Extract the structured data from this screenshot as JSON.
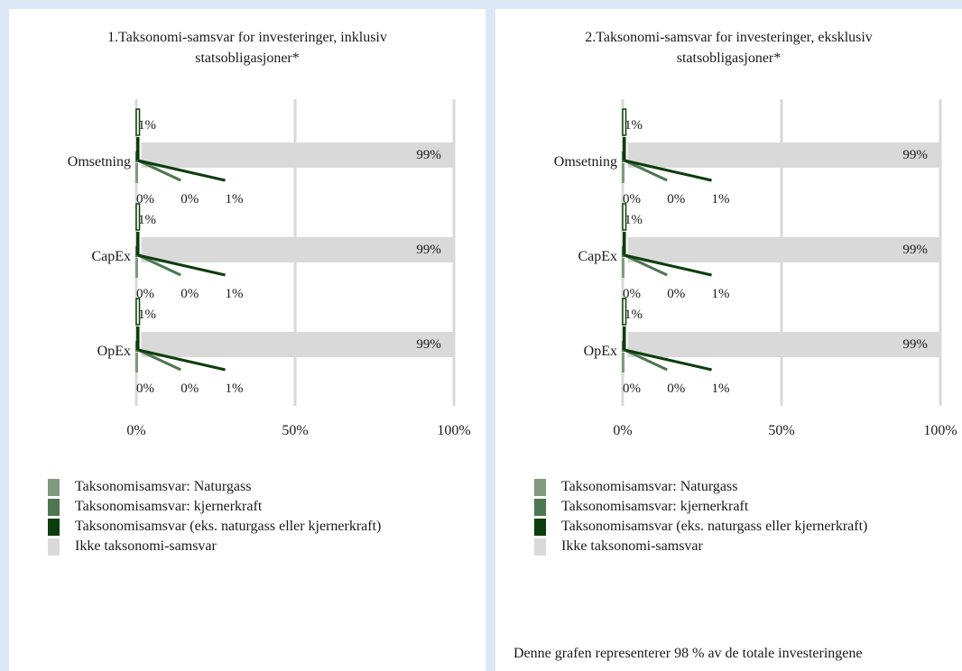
{
  "colors": {
    "naturgass": "#7f9a7f",
    "kjernerkraft": "#4f7652",
    "taksonomi": "#0c3d0c",
    "ikke": "#d9d9d9",
    "grid": "#d9d9d9"
  },
  "x_ticks": [
    "0%",
    "50%",
    "100%"
  ],
  "legend": [
    {
      "key": "naturgass",
      "label": "Taksonomisamsvar: Naturgass"
    },
    {
      "key": "kjernerkraft",
      "label": "Taksonomisamsvar: kjernerkraft"
    },
    {
      "key": "taksonomi",
      "label": "Taksonomisamsvar (eks. naturgass eller kjernerkraft)"
    },
    {
      "key": "ikke",
      "label": "Ikke taksonomi-samsvar"
    }
  ],
  "footnote": "Denne grafen representerer 98 % av de totale investeringene",
  "chart_data": [
    {
      "type": "bar",
      "orientation": "horizontal",
      "stacked": true,
      "title": [
        "1.Taksonomi-samsvar for investeringer, inklusiv",
        "statsobligasjoner*"
      ],
      "categories": [
        "Omsetning",
        "CapEx",
        "OpEx"
      ],
      "xlim": [
        0,
        100
      ],
      "x_ticks": [
        "0%",
        "50%",
        "100%"
      ],
      "grid": true,
      "legend_position": "bottom",
      "series": [
        {
          "name": "Taksonomisamsvar: Naturgass",
          "values": [
            0,
            0,
            0
          ],
          "labels": [
            "0%",
            "0%",
            "0%"
          ]
        },
        {
          "name": "Taksonomisamsvar: kjernerkraft",
          "values": [
            0,
            0,
            0
          ],
          "labels": [
            "0%",
            "0%",
            "0%"
          ]
        },
        {
          "name": "Taksonomisamsvar (eks. naturgass eller kjernerkraft)",
          "values": [
            1,
            1,
            1
          ],
          "labels": [
            "1%",
            "1%",
            "1%"
          ]
        },
        {
          "name": "Ikke taksonomi-samsvar",
          "values": [
            99,
            99,
            99
          ],
          "labels": [
            "99%",
            "99%",
            "99%"
          ]
        }
      ],
      "top_labels": [
        "1%",
        "1%",
        "1%"
      ]
    },
    {
      "type": "bar",
      "orientation": "horizontal",
      "stacked": true,
      "title": [
        "2.Taksonomi-samsvar for investeringer, eksklusiv",
        "statsobligasjoner*"
      ],
      "categories": [
        "Omsetning",
        "CapEx",
        "OpEx"
      ],
      "xlim": [
        0,
        100
      ],
      "x_ticks": [
        "0%",
        "50%",
        "100%"
      ],
      "grid": true,
      "legend_position": "bottom",
      "series": [
        {
          "name": "Taksonomisamsvar: Naturgass",
          "values": [
            0,
            0,
            0
          ],
          "labels": [
            "0%",
            "0%",
            "0%"
          ]
        },
        {
          "name": "Taksonomisamsvar: kjernerkraft",
          "values": [
            0,
            0,
            0
          ],
          "labels": [
            "0%",
            "0%",
            "0%"
          ]
        },
        {
          "name": "Taksonomisamsvar (eks. naturgass eller kjernerkraft)",
          "values": [
            1,
            1,
            1
          ],
          "labels": [
            "1%",
            "1%",
            "1%"
          ]
        },
        {
          "name": "Ikke taksonomi-samsvar",
          "values": [
            99,
            99,
            99
          ],
          "labels": [
            "99%",
            "99%",
            "99%"
          ]
        }
      ],
      "top_labels": [
        "1%",
        "1%",
        "1%"
      ]
    }
  ]
}
